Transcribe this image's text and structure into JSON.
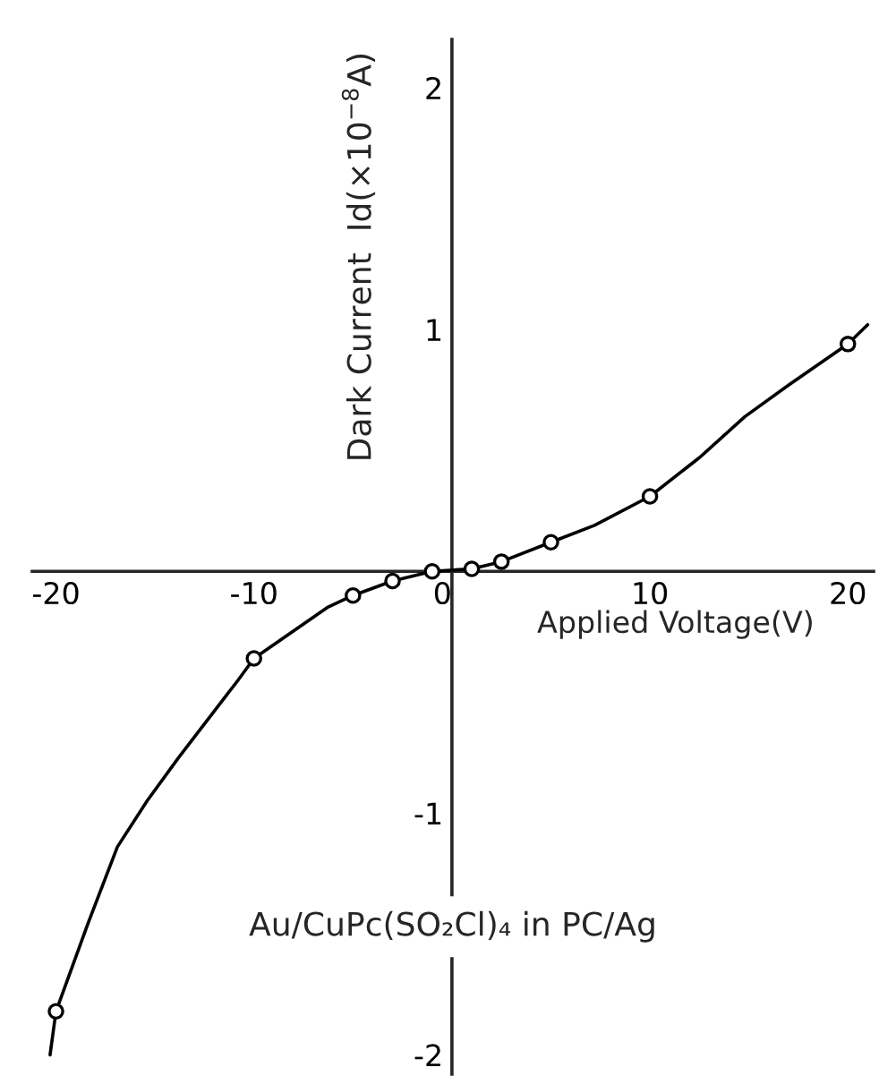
{
  "chart_data": {
    "type": "line",
    "xlabel": "Applied Voltage(V)",
    "ylabel": "Dark Current  Id(×10$^{−8}$A)",
    "annotations": [
      "Au/CuPc(SO₂Cl)₄ in PC/Ag"
    ],
    "xlim": [
      -21.2,
      21.3
    ],
    "ylim": [
      -2.08,
      2.2
    ],
    "xticks": [
      -20,
      -10,
      0,
      10,
      20
    ],
    "yticks": [
      -2,
      -1,
      1,
      2
    ],
    "series": [
      {
        "type": "scatter",
        "marker": "circle",
        "color": "#000000",
        "x": [
          -20,
          -10,
          -5,
          -3,
          -1,
          1,
          2.5,
          5,
          10,
          20
        ],
        "values": [
          -1.82,
          -0.36,
          -0.1,
          -0.04,
          0.0,
          0.01,
          0.04,
          0.12,
          0.31,
          0.94
        ]
      },
      {
        "type": "line",
        "color": "#000000",
        "x": [
          -20.3,
          -20,
          -18.4,
          -16.9,
          -15.4,
          -13.8,
          -10.8,
          -10,
          -6.3,
          -5,
          -3,
          -1,
          1,
          2.5,
          5,
          7.2,
          10,
          12.5,
          14.8,
          17,
          20,
          21
        ],
        "values": [
          -2.0,
          -1.82,
          -1.46,
          -1.14,
          -0.95,
          -0.77,
          -0.45,
          -0.36,
          -0.15,
          -0.1,
          -0.04,
          0.0,
          0.01,
          0.04,
          0.12,
          0.19,
          0.31,
          0.47,
          0.64,
          0.77,
          0.94,
          1.02
        ]
      }
    ]
  }
}
